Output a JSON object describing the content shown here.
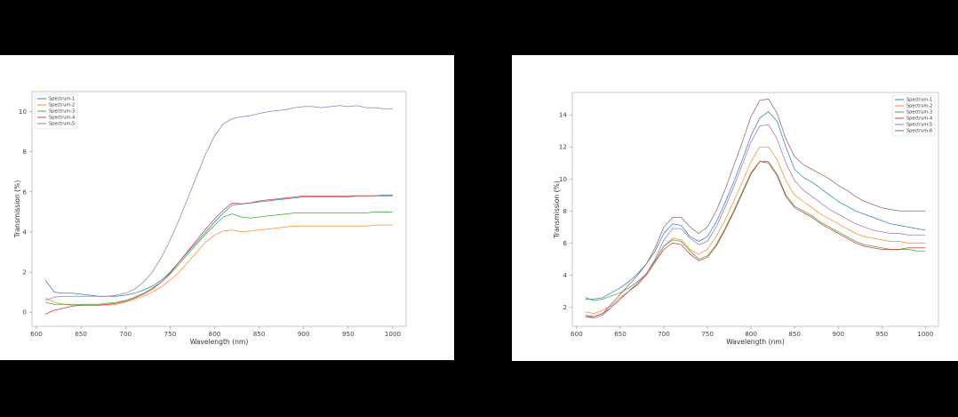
{
  "chart_data": [
    {
      "type": "line",
      "xlabel": "Wavelength (nm)",
      "ylabel": "Transmission (%)",
      "xlim": [
        595,
        1015
      ],
      "ylim": [
        -0.7,
        11.0
      ],
      "xticks": [
        600,
        650,
        700,
        750,
        800,
        850,
        900,
        950,
        1000
      ],
      "yticks": [
        0,
        2,
        4,
        6,
        8,
        10
      ],
      "legend_position": "top-left",
      "x": [
        610,
        620,
        630,
        640,
        650,
        660,
        670,
        680,
        690,
        700,
        710,
        720,
        730,
        740,
        750,
        760,
        770,
        780,
        790,
        800,
        810,
        820,
        830,
        840,
        850,
        860,
        870,
        880,
        890,
        900,
        910,
        920,
        930,
        940,
        950,
        960,
        970,
        980,
        990,
        1000
      ],
      "series": [
        {
          "name": "Spectrum-1",
          "color": "#1f77b4",
          "values": [
            1.6,
            1.0,
            0.95,
            0.95,
            0.9,
            0.85,
            0.8,
            0.8,
            0.8,
            0.85,
            0.95,
            1.1,
            1.3,
            1.6,
            2.0,
            2.5,
            3.0,
            3.5,
            4.0,
            4.5,
            4.95,
            5.35,
            5.4,
            5.45,
            5.5,
            5.55,
            5.6,
            5.65,
            5.7,
            5.75,
            5.75,
            5.75,
            5.75,
            5.75,
            5.75,
            5.8,
            5.8,
            5.8,
            5.8,
            5.8
          ]
        },
        {
          "name": "Spectrum-2",
          "color": "#ff7f0e",
          "values": [
            0.7,
            0.5,
            0.4,
            0.35,
            0.35,
            0.35,
            0.35,
            0.35,
            0.4,
            0.5,
            0.65,
            0.8,
            1.0,
            1.25,
            1.6,
            2.0,
            2.5,
            3.0,
            3.5,
            3.85,
            4.05,
            4.1,
            4.0,
            4.05,
            4.1,
            4.15,
            4.2,
            4.25,
            4.3,
            4.3,
            4.3,
            4.3,
            4.3,
            4.3,
            4.3,
            4.3,
            4.3,
            4.35,
            4.35,
            4.35
          ]
        },
        {
          "name": "Spectrum-3",
          "color": "#2ca02c",
          "values": [
            0.5,
            0.4,
            0.4,
            0.4,
            0.4,
            0.4,
            0.4,
            0.45,
            0.5,
            0.6,
            0.75,
            0.95,
            1.2,
            1.5,
            1.9,
            2.4,
            2.9,
            3.4,
            3.9,
            4.35,
            4.75,
            4.9,
            4.75,
            4.7,
            4.75,
            4.8,
            4.85,
            4.9,
            4.95,
            4.95,
            4.95,
            4.95,
            4.95,
            4.95,
            4.95,
            4.95,
            4.95,
            5.0,
            5.0,
            5.0
          ]
        },
        {
          "name": "Spectrum-4",
          "color": "#d62728",
          "values": [
            -0.1,
            0.1,
            0.2,
            0.3,
            0.35,
            0.35,
            0.35,
            0.4,
            0.45,
            0.55,
            0.7,
            0.9,
            1.15,
            1.5,
            1.95,
            2.5,
            3.05,
            3.6,
            4.15,
            4.65,
            5.1,
            5.45,
            5.4,
            5.45,
            5.55,
            5.6,
            5.65,
            5.7,
            5.75,
            5.8,
            5.8,
            5.8,
            5.8,
            5.8,
            5.8,
            5.8,
            5.8,
            5.8,
            5.85,
            5.85
          ]
        },
        {
          "name": "Spectrum-5",
          "color": "#9467bd",
          "values": [
            0.6,
            0.75,
            0.8,
            0.8,
            0.8,
            0.8,
            0.8,
            0.8,
            0.85,
            0.95,
            1.15,
            1.5,
            2.0,
            2.7,
            3.6,
            4.6,
            5.7,
            6.8,
            7.9,
            8.8,
            9.4,
            9.65,
            9.75,
            9.8,
            9.9,
            10.0,
            10.05,
            10.1,
            10.2,
            10.25,
            10.25,
            10.2,
            10.25,
            10.3,
            10.25,
            10.3,
            10.2,
            10.2,
            10.15,
            10.15
          ]
        }
      ]
    },
    {
      "type": "line",
      "xlabel": "Wavelength (nm)",
      "ylabel": "Transmission (%)",
      "xlim": [
        595,
        1015
      ],
      "ylim": [
        0.8,
        15.4
      ],
      "xticks": [
        600,
        650,
        700,
        750,
        800,
        850,
        900,
        950,
        1000
      ],
      "yticks": [
        2,
        4,
        6,
        8,
        10,
        12,
        14
      ],
      "legend_position": "top-right",
      "x": [
        610,
        620,
        630,
        640,
        650,
        660,
        670,
        680,
        690,
        700,
        710,
        720,
        730,
        740,
        750,
        760,
        770,
        780,
        790,
        800,
        810,
        820,
        830,
        840,
        850,
        860,
        870,
        880,
        890,
        900,
        910,
        920,
        930,
        940,
        950,
        960,
        970,
        980,
        990,
        1000
      ],
      "series": [
        {
          "name": "Spectrum-1",
          "color": "#1f77b4",
          "values": [
            2.5,
            2.5,
            2.6,
            2.9,
            3.2,
            3.6,
            4.1,
            4.7,
            5.5,
            6.6,
            7.2,
            7.1,
            6.4,
            6.1,
            6.4,
            7.3,
            8.5,
            9.8,
            11.2,
            12.7,
            13.8,
            14.2,
            13.6,
            12.0,
            10.6,
            10.1,
            9.8,
            9.4,
            9.0,
            8.6,
            8.3,
            8.0,
            7.8,
            7.6,
            7.4,
            7.2,
            7.1,
            7.0,
            6.9,
            6.8
          ]
        },
        {
          "name": "Spectrum-2",
          "color": "#ff7f0e",
          "values": [
            1.7,
            1.6,
            1.8,
            2.1,
            2.6,
            3.0,
            3.5,
            4.1,
            4.9,
            5.8,
            6.3,
            6.2,
            5.6,
            5.3,
            5.6,
            6.4,
            7.4,
            8.6,
            9.8,
            11.1,
            12.0,
            12.0,
            11.2,
            9.9,
            9.0,
            8.6,
            8.2,
            7.8,
            7.5,
            7.2,
            6.9,
            6.6,
            6.4,
            6.3,
            6.2,
            6.1,
            6.1,
            6.0,
            6.0,
            6.0
          ]
        },
        {
          "name": "Spectrum-3",
          "color": "#2ca02c",
          "values": [
            2.6,
            2.4,
            2.5,
            2.7,
            2.9,
            3.2,
            3.6,
            4.1,
            4.9,
            5.8,
            6.2,
            6.1,
            5.5,
            5.0,
            5.2,
            5.9,
            6.9,
            8.0,
            9.2,
            10.4,
            11.1,
            11.1,
            10.3,
            9.0,
            8.3,
            8.0,
            7.7,
            7.3,
            7.0,
            6.7,
            6.4,
            6.1,
            5.9,
            5.8,
            5.7,
            5.6,
            5.6,
            5.6,
            5.5,
            5.5
          ]
        },
        {
          "name": "Spectrum-4",
          "color": "#d62728",
          "values": [
            1.5,
            1.4,
            1.6,
            2.0,
            2.5,
            3.0,
            3.4,
            4.0,
            4.8,
            5.6,
            6.0,
            5.9,
            5.3,
            4.9,
            5.1,
            5.8,
            6.8,
            7.9,
            9.1,
            10.3,
            11.1,
            11.0,
            10.2,
            8.9,
            8.2,
            7.9,
            7.6,
            7.2,
            6.9,
            6.6,
            6.3,
            6.0,
            5.8,
            5.7,
            5.6,
            5.6,
            5.6,
            5.7,
            5.7,
            5.7
          ]
        },
        {
          "name": "Spectrum-5",
          "color": "#9467bd",
          "values": [
            1.4,
            1.3,
            1.5,
            2.0,
            2.5,
            3.0,
            3.5,
            4.1,
            5.0,
            6.2,
            6.9,
            6.9,
            6.3,
            5.9,
            6.1,
            7.0,
            8.2,
            9.5,
            10.9,
            12.3,
            13.3,
            13.4,
            12.5,
            11.0,
            9.9,
            9.3,
            8.9,
            8.5,
            8.1,
            7.8,
            7.5,
            7.2,
            7.0,
            6.8,
            6.7,
            6.6,
            6.6,
            6.5,
            6.5,
            6.5
          ]
        },
        {
          "name": "Spectrum-6",
          "color": "#8c564b",
          "values": [
            1.4,
            1.4,
            1.6,
            2.2,
            2.8,
            3.4,
            4.0,
            4.7,
            5.7,
            7.0,
            7.6,
            7.6,
            7.0,
            6.6,
            7.0,
            8.0,
            9.3,
            10.8,
            12.3,
            13.9,
            14.9,
            15.0,
            14.1,
            12.5,
            11.4,
            10.9,
            10.6,
            10.3,
            10.0,
            9.6,
            9.3,
            8.9,
            8.6,
            8.4,
            8.2,
            8.1,
            8.0,
            8.0,
            8.0,
            8.0
          ]
        }
      ]
    }
  ]
}
